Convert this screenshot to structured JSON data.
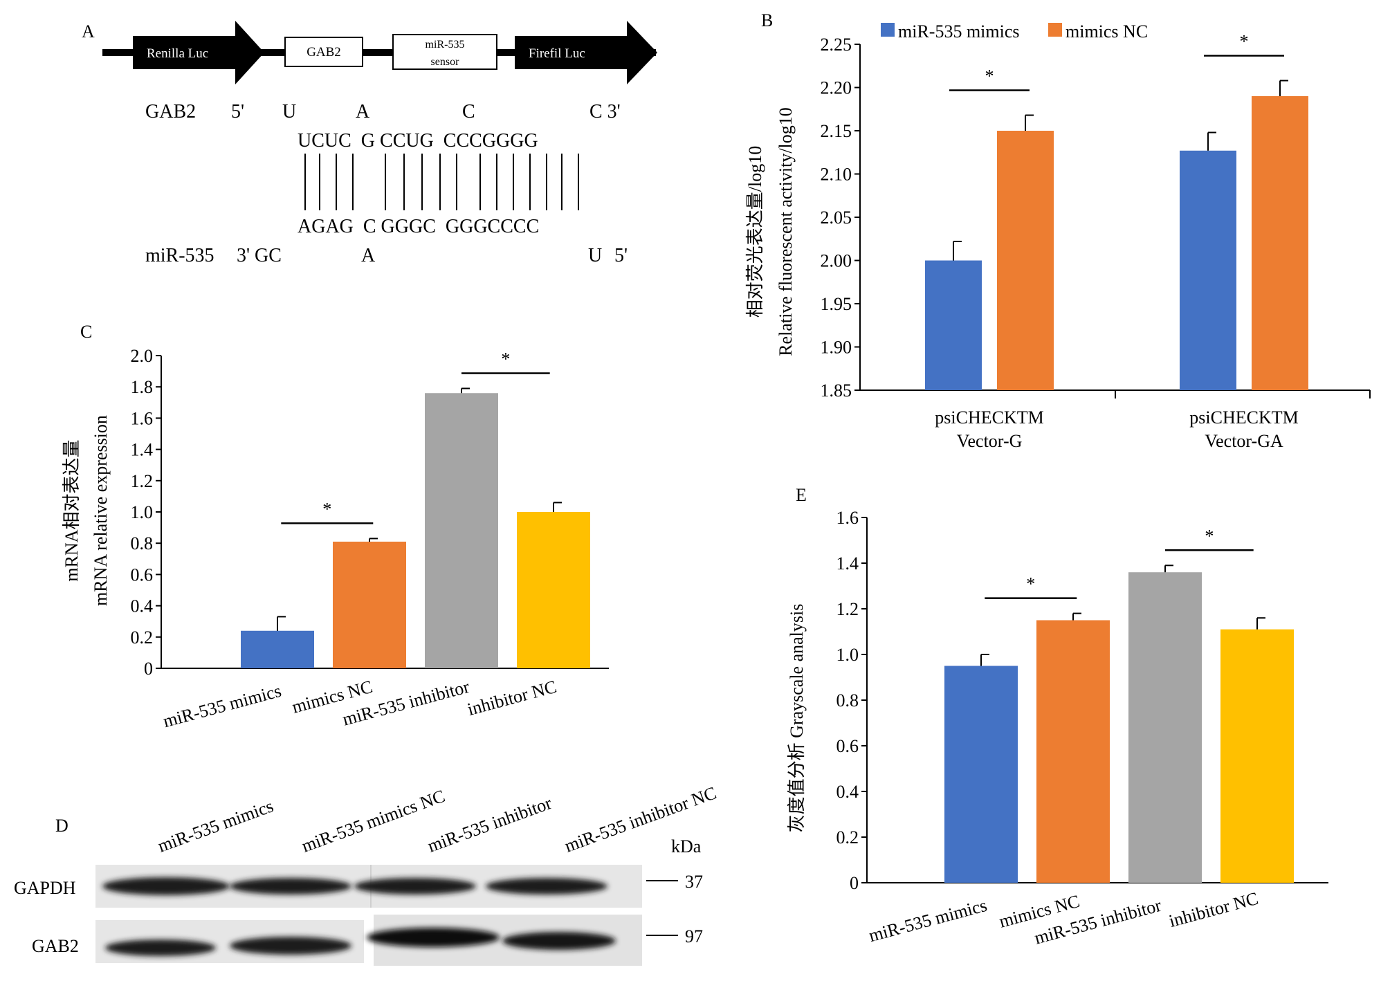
{
  "panel_labels": {
    "A": "A",
    "B": "B",
    "C": "C",
    "D": "D",
    "E": "E"
  },
  "panel_a": {
    "construct": [
      "Renilla Luc",
      "GAB2",
      "miR-535",
      "sensor",
      "Firefil Luc"
    ],
    "gab2_label": "GAB2",
    "gab2_5prime": "5'",
    "gab2_unpaired": [
      "U",
      "A",
      "C",
      "C 3'"
    ],
    "gab2_paired": "UCUC  G CCUG  CCCGGGG",
    "mir_paired": "AGAG  C GGGC  GGGCCCC",
    "mir_label": "miR-535",
    "mir_3prime_gc": "3' GC",
    "mir_unpaired": [
      "A",
      "U",
      "5'"
    ]
  },
  "chart_data": [
    {
      "id": "B",
      "type": "bar",
      "ylabel_cn": "相对荧光表达量/log10",
      "ylabel_en": "Relative fluorescent activity/log10",
      "ylim": [
        1.85,
        2.25
      ],
      "yticks": [
        "1.85",
        "1.90",
        "1.95",
        "2.00",
        "2.05",
        "2.10",
        "2.15",
        "2.20",
        "2.25"
      ],
      "categories": [
        [
          "psiCHECKTM",
          "Vector-G"
        ],
        [
          "psiCHECKTM",
          "Vector-GA"
        ]
      ],
      "series": [
        {
          "name": "miR-535 mimics",
          "values": [
            2.0,
            2.127
          ],
          "errors": [
            0.022,
            0.021
          ],
          "color": "#4472c4"
        },
        {
          "name": "mimics NC",
          "values": [
            2.15,
            2.19
          ],
          "errors": [
            0.018,
            0.018
          ],
          "color": "#ed7d31"
        }
      ],
      "significance": [
        "*",
        "*"
      ],
      "legend": "top"
    },
    {
      "id": "C",
      "type": "bar",
      "ylabel_cn": "mRNA相对表达量",
      "ylabel_en": "mRNA relative expression",
      "ylim": [
        0,
        2.0
      ],
      "yticks": [
        "0",
        "0.2",
        "0.4",
        "0.6",
        "0.8",
        "1.0",
        "1.2",
        "1.4",
        "1.6",
        "1.8",
        "2.0"
      ],
      "categories": [
        "miR-535 mimics",
        "mimics NC",
        "miR-535 inhibitor",
        "inhibitor NC"
      ],
      "values": [
        0.24,
        0.81,
        1.76,
        1.0
      ],
      "errors": [
        0.09,
        0.02,
        0.03,
        0.06
      ],
      "colors": [
        "#4472c4",
        "#ed7d31",
        "#a5a5a5",
        "#ffc000"
      ],
      "significance": [
        "*",
        "*"
      ]
    },
    {
      "id": "E",
      "type": "bar",
      "ylabel": "灰度值分析 Grayscale analysis",
      "ylim": [
        0,
        1.6
      ],
      "yticks": [
        "0",
        "0.2",
        "0.4",
        "0.6",
        "0.8",
        "1.0",
        "1.2",
        "1.4",
        "1.6"
      ],
      "categories": [
        "miR-535 mimics",
        "mimics NC",
        "miR-535 inhibitor",
        "inhibitor NC"
      ],
      "values": [
        0.95,
        1.15,
        1.36,
        1.11
      ],
      "errors": [
        0.05,
        0.03,
        0.03,
        0.05
      ],
      "colors": [
        "#4472c4",
        "#ed7d31",
        "#a5a5a5",
        "#ffc000"
      ],
      "significance": [
        "*",
        "*"
      ]
    }
  ],
  "panel_d": {
    "lanes": [
      "miR-535 mimics",
      "miR-535 mimics NC",
      "miR-535 inhibitor",
      "miR-535 inhibitor NC"
    ],
    "kda_label": "kDa",
    "rows": [
      {
        "name": "GAPDH",
        "kda": "37"
      },
      {
        "name": "GAB2",
        "kda": "97"
      }
    ]
  }
}
